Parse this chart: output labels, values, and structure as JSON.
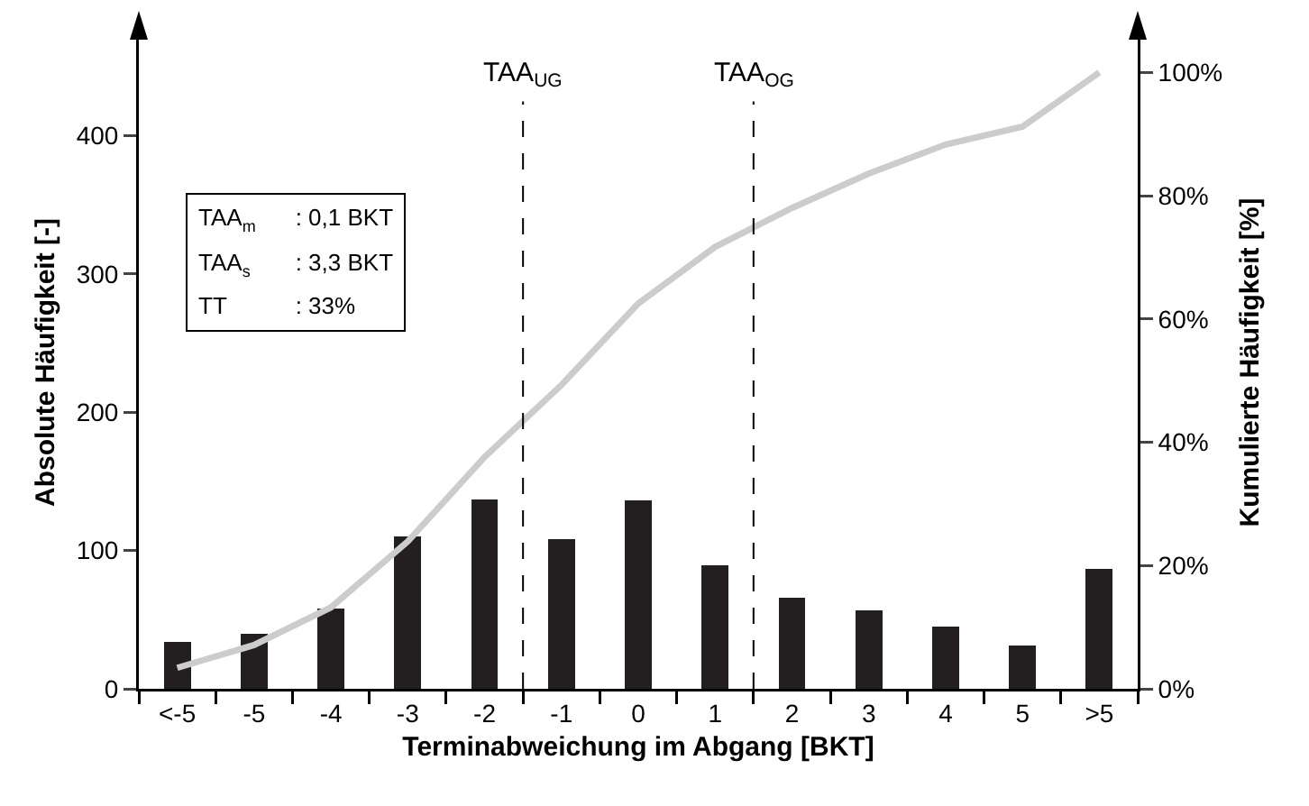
{
  "chart_data": {
    "type": "bar",
    "xlabel": "Terminabweichung im Abgang [BKT]",
    "ylabel": "Absolute Häufigkeit [-]",
    "y2label": "Kumulierte Häufigkeit [%]",
    "x": [
      -6,
      -5,
      -4,
      -3,
      -2,
      -1,
      0,
      1,
      2,
      3,
      4,
      5,
      6
    ],
    "xlim": [
      -6.5,
      6.5
    ],
    "xticks": [
      {
        "value": -6,
        "label": "<-5"
      },
      -5,
      -4,
      -3,
      -2,
      -1,
      0,
      1,
      2,
      3,
      4,
      5,
      {
        "value": 6,
        "label": ">5"
      }
    ],
    "series": [
      {
        "color": "#231f20",
        "values": [
          34,
          40,
          58,
          110,
          137,
          108,
          136,
          89,
          66,
          57,
          45,
          31,
          87
        ]
      },
      {
        "type": "line",
        "axis": "y2",
        "color": "#cccccc",
        "values": [
          3.4,
          7.1,
          13.2,
          23.9,
          37.6,
          49.3,
          62.5,
          71.7,
          78,
          83.6,
          88.3,
          91.2,
          100
        ]
      }
    ],
    "ylim": [
      0,
      472
    ],
    "yticks": [
      0,
      100,
      200,
      300,
      400
    ],
    "y2lim": [
      0,
      105.9
    ],
    "y2ticks": [
      {
        "value": 0,
        "label": "0%"
      },
      {
        "value": 20,
        "label": "20%"
      },
      {
        "value": 40,
        "label": "40%"
      },
      {
        "value": 60,
        "label": "60%"
      },
      {
        "value": 80,
        "label": "80%"
      },
      {
        "value": 100,
        "label": "100%"
      }
    ],
    "ref_lines": [
      {
        "axis": "x",
        "value": -1.5,
        "label": "TAA$_{UG}$",
        "line_style": "dashed",
        "color": "#000000"
      },
      {
        "axis": "x",
        "value": 1.5,
        "label": "TAA$_{OG}$",
        "line_style": "dashed",
        "color": "#000000"
      }
    ],
    "annotations": [
      "TAA$_{m}$ : 0,1 BKT",
      "TAA$_{s}$ : 3,3 BKT",
      "TT : 33%"
    ],
    "grid": false
  }
}
